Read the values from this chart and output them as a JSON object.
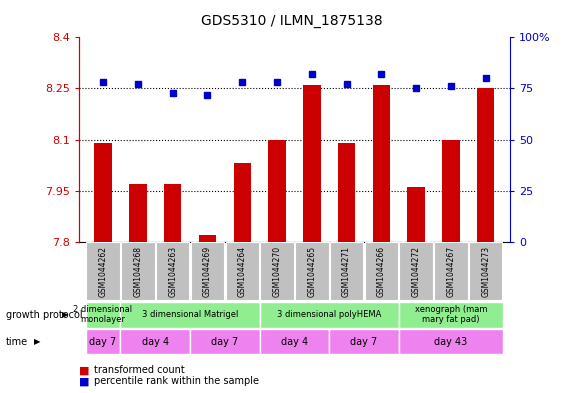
{
  "title": "GDS5310 / ILMN_1875138",
  "samples": [
    "GSM1044262",
    "GSM1044268",
    "GSM1044263",
    "GSM1044269",
    "GSM1044264",
    "GSM1044270",
    "GSM1044265",
    "GSM1044271",
    "GSM1044266",
    "GSM1044272",
    "GSM1044267",
    "GSM1044273"
  ],
  "red_values": [
    8.09,
    7.97,
    7.97,
    7.82,
    8.03,
    8.1,
    8.26,
    8.09,
    8.26,
    7.96,
    8.1,
    8.25
  ],
  "blue_values": [
    78,
    77,
    73,
    72,
    78,
    78,
    82,
    77,
    82,
    75,
    76,
    80
  ],
  "ylim_left": [
    7.8,
    8.4
  ],
  "ylim_right": [
    0,
    100
  ],
  "yticks_left": [
    7.8,
    7.95,
    8.1,
    8.25,
    8.4
  ],
  "yticks_left_labels": [
    "7.8",
    "7.95",
    "8.1",
    "8.25",
    "8.4"
  ],
  "yticks_right": [
    0,
    25,
    50,
    75,
    100
  ],
  "yticks_right_labels": [
    "0",
    "25",
    "50",
    "75",
    "100%"
  ],
  "growth_protocol_groups": [
    {
      "label": "2 dimensional\nmonolayer",
      "start": 0,
      "end": 1,
      "color": "#90ee90"
    },
    {
      "label": "3 dimensional Matrigel",
      "start": 1,
      "end": 5,
      "color": "#90ee90"
    },
    {
      "label": "3 dimensional polyHEMA",
      "start": 5,
      "end": 9,
      "color": "#90ee90"
    },
    {
      "label": "xenograph (mam\nmary fat pad)",
      "start": 9,
      "end": 12,
      "color": "#90ee90"
    }
  ],
  "time_groups": [
    {
      "label": "day 7",
      "start": 0,
      "end": 1,
      "color": "#ee82ee"
    },
    {
      "label": "day 4",
      "start": 1,
      "end": 3,
      "color": "#ee82ee"
    },
    {
      "label": "day 7",
      "start": 3,
      "end": 5,
      "color": "#ee82ee"
    },
    {
      "label": "day 4",
      "start": 5,
      "end": 7,
      "color": "#ee82ee"
    },
    {
      "label": "day 7",
      "start": 7,
      "end": 9,
      "color": "#ee82ee"
    },
    {
      "label": "day 43",
      "start": 9,
      "end": 12,
      "color": "#ee82ee"
    }
  ],
  "bar_color": "#cc0000",
  "dot_color": "#0000cc",
  "grid_color": "#000000",
  "title_color": "#000000",
  "left_axis_color": "#cc0000",
  "right_axis_color": "#0000cc",
  "sample_box_color": "#c0c0c0"
}
